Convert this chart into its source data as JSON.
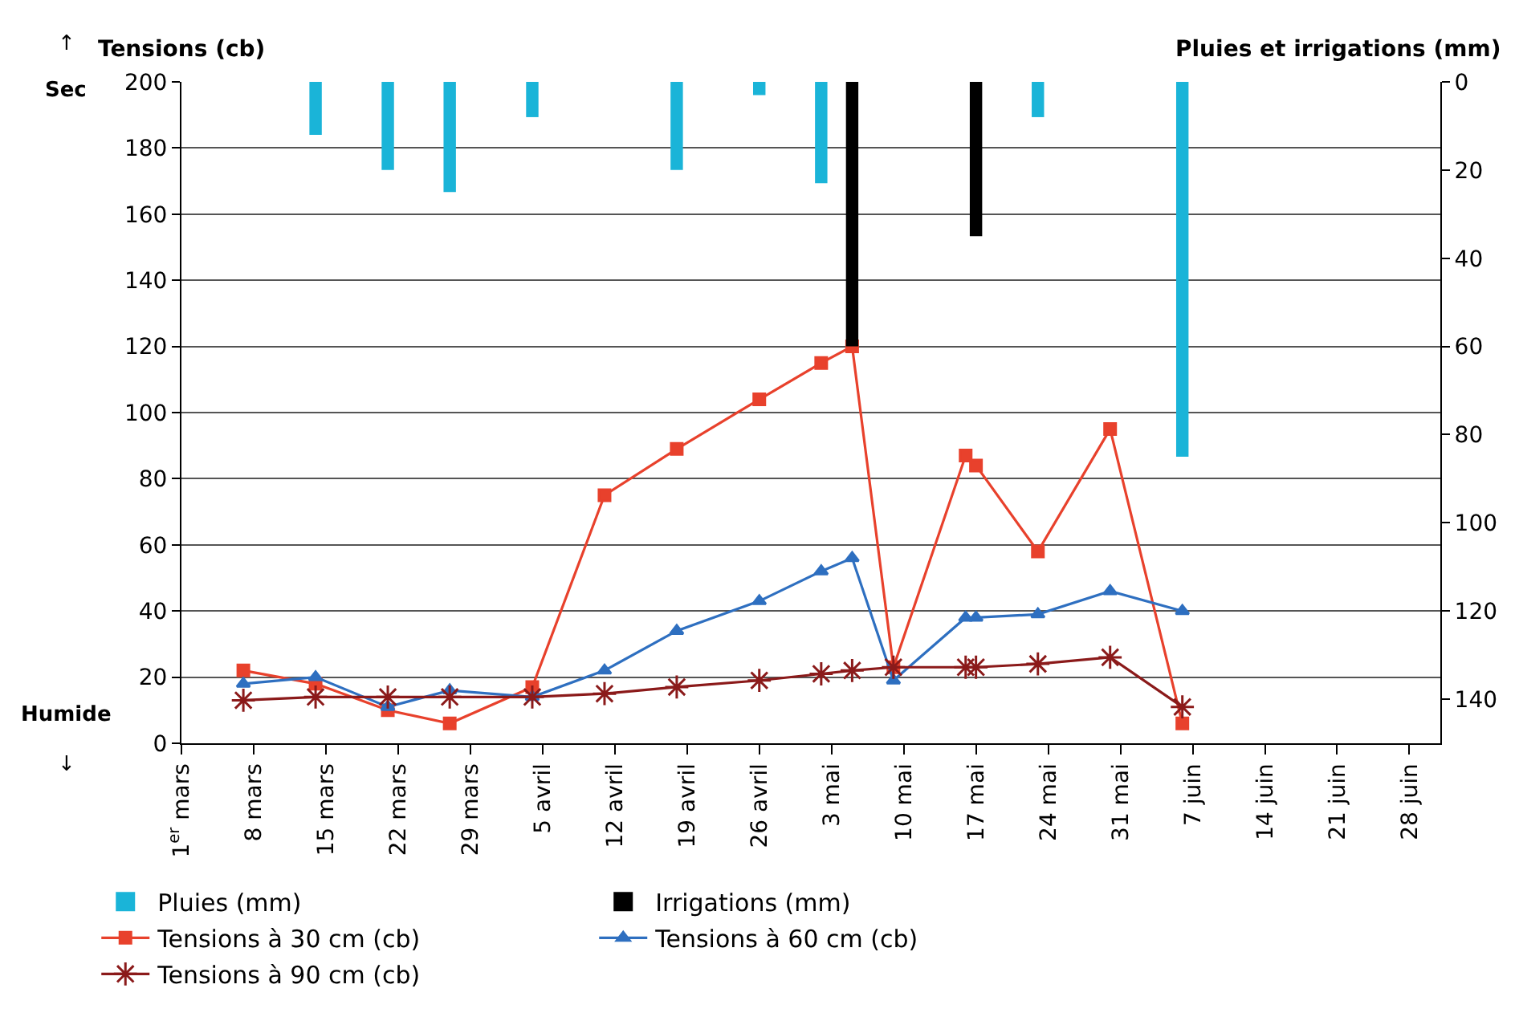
{
  "chart_data": {
    "type": "line",
    "ylabel": "Tensions (cb)",
    "y2label": "Pluies et irrigations (mm)",
    "annotations": [
      "↑",
      "Sec",
      "Humide",
      "↓"
    ],
    "xlim": [
      "--03-01",
      "--07-01"
    ],
    "xticks": [
      {
        "value": "--03-01",
        "label": "1$^{er}$ mars"
      },
      {
        "value": "--03-08",
        "label": "8 mars"
      },
      {
        "value": "--03-15",
        "label": "15 mars"
      },
      {
        "value": "--03-22",
        "label": "22 mars"
      },
      {
        "value": "--03-29",
        "label": "29 mars"
      },
      {
        "value": "--04-05",
        "label": "5 avril"
      },
      {
        "value": "--04-12",
        "label": "12 avril"
      },
      {
        "value": "--04-19",
        "label": "19 avril"
      },
      {
        "value": "--04-26",
        "label": "26 avril"
      },
      {
        "value": "--05-03",
        "label": "3 mai"
      },
      {
        "value": "--05-10",
        "label": "10 mai"
      },
      {
        "value": "--05-17",
        "label": "17 mai"
      },
      {
        "value": "--05-24",
        "label": "24 mai"
      },
      {
        "value": "--05-31",
        "label": "31 mai"
      },
      {
        "value": "--06-07",
        "label": "7 juin"
      },
      {
        "value": "--06-14",
        "label": "14 juin"
      },
      {
        "value": "--06-21",
        "label": "21 juin"
      },
      {
        "value": "--06-28",
        "label": "28 juin"
      }
    ],
    "ylim": [
      0,
      200
    ],
    "yticks": [
      0,
      20,
      40,
      60,
      80,
      100,
      120,
      140,
      160,
      180,
      200
    ],
    "y2lim": [
      150,
      0
    ],
    "y2ticks": [
      0,
      20,
      40,
      60,
      80,
      100,
      120,
      140
    ],
    "grid": "y",
    "legend": "bottom",
    "series": [
      {
        "name": "Pluies (mm)",
        "type": "bar",
        "axis": "y2",
        "color": "#1ab4d8",
        "x": [
          "--03-14",
          "--03-21",
          "--03-27",
          "--04-04",
          "--04-18",
          "--04-26",
          "--05-02",
          "--05-23",
          "--06-06"
        ],
        "values": [
          12,
          20,
          25,
          8,
          20,
          3,
          23,
          8,
          85
        ]
      },
      {
        "name": "Irrigations (mm)",
        "type": "bar",
        "axis": "y2",
        "color": "#000000",
        "x": [
          "--05-05",
          "--05-17"
        ],
        "values": [
          60,
          35
        ]
      },
      {
        "name": "Tensions à 30 cm (cb)",
        "color": "#e8412c",
        "marker": "square",
        "x": [
          "--03-07",
          "--03-14",
          "--03-21",
          "--03-27",
          "--04-04",
          "--04-11",
          "--04-18",
          "--04-26",
          "--05-02",
          "--05-05",
          "--05-09",
          "--05-16",
          "--05-17",
          "--05-23",
          "--05-30",
          "--06-06"
        ],
        "values": [
          22,
          18,
          10,
          6,
          17,
          75,
          89,
          104,
          115,
          120,
          23,
          87,
          84,
          58,
          95,
          6
        ]
      },
      {
        "name": "Tensions à 60 cm (cb)",
        "color": "#2e6fc0",
        "marker": "triangle",
        "x": [
          "--03-07",
          "--03-14",
          "--03-21",
          "--03-27",
          "--04-04",
          "--04-11",
          "--04-18",
          "--04-26",
          "--05-02",
          "--05-05",
          "--05-09",
          "--05-16",
          "--05-17",
          "--05-23",
          "--05-30",
          "--06-06"
        ],
        "values": [
          18,
          20,
          11,
          16,
          14,
          22,
          34,
          43,
          52,
          56,
          19,
          38,
          38,
          39,
          46,
          40
        ]
      },
      {
        "name": "Tensions à 90 cm (cb)",
        "color": "#8b1a1a",
        "marker": "cross",
        "x": [
          "--03-07",
          "--03-14",
          "--03-21",
          "--03-27",
          "--04-04",
          "--04-11",
          "--04-18",
          "--04-26",
          "--05-02",
          "--05-05",
          "--05-09",
          "--05-16",
          "--05-17",
          "--05-23",
          "--05-30",
          "--06-06"
        ],
        "values": [
          13,
          14,
          14,
          14,
          14,
          15,
          17,
          19,
          21,
          22,
          23,
          23,
          23,
          24,
          26,
          11
        ]
      }
    ]
  }
}
